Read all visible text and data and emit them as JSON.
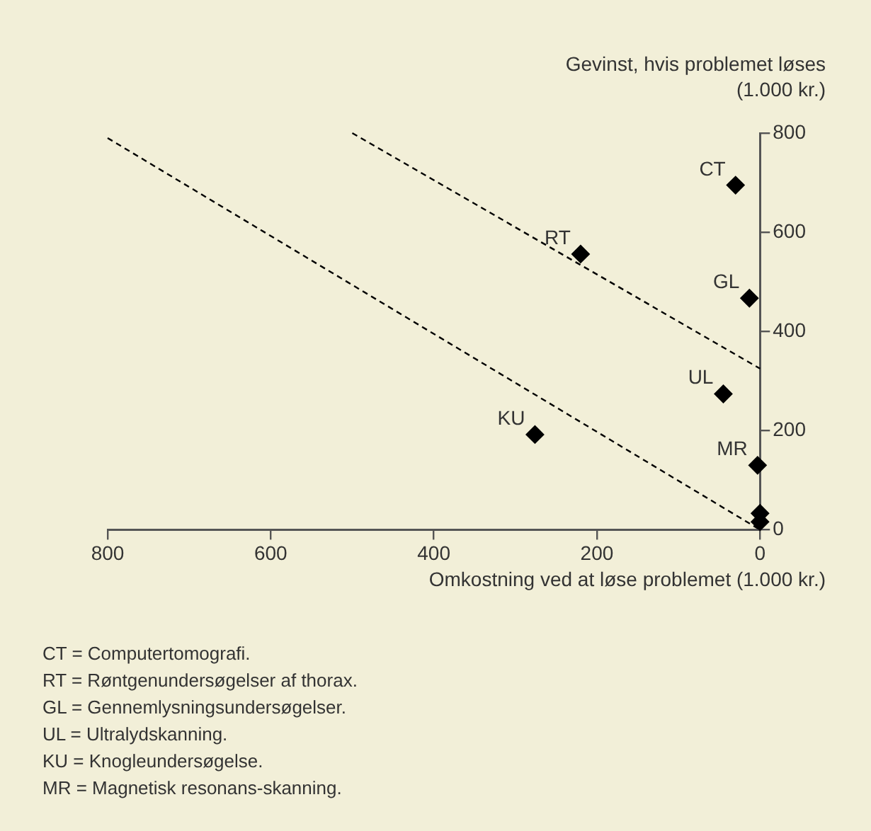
{
  "chart_data": {
    "type": "scatter",
    "xlabel": "Omkostning ved at løse problemet (1.000 kr.)",
    "ylabel": "Gevinst, hvis problemet løses (1.000 kr.)",
    "xlim": [
      800,
      0
    ],
    "ylim": [
      0,
      800
    ],
    "xticks": [
      800,
      600,
      400,
      200,
      0
    ],
    "yticks": [
      0,
      200,
      400,
      600,
      800
    ],
    "grid": false,
    "legend": false,
    "series": [
      {
        "type": "scatter",
        "marker": "diamond",
        "color": "#000000",
        "x": [
          30,
          220,
          13,
          45,
          276,
          3,
          0,
          0
        ],
        "values": [
          695,
          556,
          467,
          274,
          192,
          130,
          33,
          16
        ]
      },
      {
        "type": "line",
        "marker": "none",
        "line_style": "dashed",
        "color": "#000000",
        "x": [
          800,
          0
        ],
        "values": [
          790,
          0
        ]
      },
      {
        "type": "line",
        "marker": "none",
        "line_style": "dashed",
        "color": "#000000",
        "x": [
          500,
          0
        ],
        "values": [
          800,
          325
        ]
      }
    ],
    "annotations": [
      {
        "text": "CT",
        "x": 30,
        "y": 695
      },
      {
        "text": "RT",
        "x": 220,
        "y": 556
      },
      {
        "text": "GL",
        "x": 13,
        "y": 467
      },
      {
        "text": "UL",
        "x": 45,
        "y": 274
      },
      {
        "text": "KU",
        "x": 276,
        "y": 192
      },
      {
        "text": "MR",
        "x": 3,
        "y": 130
      },
      "CT = Computertomografi.",
      "RT = Røntgenundersøgelser af thorax.",
      "GL = Gennemlysningsundersøgelser.",
      "UL = Ultralydskanning.",
      "KU = Knogleundersøgelse.",
      "MR = Magnetisk resonans-skanning."
    ]
  }
}
